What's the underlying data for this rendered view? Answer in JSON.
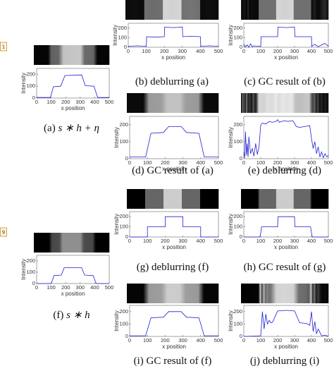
{
  "markers": [
    "1",
    "9"
  ],
  "axes": {
    "xlabel": "x position",
    "ylabel": "Intensity",
    "xlim": [
      0,
      500
    ],
    "ylim": [
      0,
      250
    ],
    "xticks": [
      0,
      100,
      200,
      300,
      400,
      500
    ],
    "yticks": [
      0,
      100,
      200
    ],
    "color": "#1f1fd6"
  },
  "panels": [
    {
      "label": "(a)",
      "math": "s ∗ h + η",
      "x": [
        0,
        95,
        115,
        165,
        195,
        310,
        335,
        395,
        420,
        500
      ],
      "y": [
        5,
        5,
        95,
        100,
        190,
        195,
        105,
        100,
        5,
        5
      ]
    },
    {
      "label": "(b)",
      "text": "deblurring (a)",
      "x": [
        0,
        50,
        100,
        102,
        150,
        200,
        202,
        250,
        300,
        302,
        350,
        400,
        402,
        450,
        500
      ],
      "y": [
        10,
        15,
        10,
        110,
        105,
        110,
        210,
        205,
        210,
        110,
        115,
        110,
        10,
        15,
        10
      ]
    },
    {
      "label": "(c)",
      "text": "GC result of (b)",
      "x": [
        0,
        10,
        20,
        30,
        40,
        50,
        60,
        80,
        100,
        102,
        150,
        200,
        202,
        250,
        300,
        302,
        350,
        400,
        402,
        420,
        440,
        460,
        480,
        500
      ],
      "y": [
        30,
        5,
        25,
        0,
        35,
        5,
        15,
        10,
        10,
        110,
        110,
        110,
        210,
        205,
        210,
        110,
        110,
        110,
        10,
        30,
        5,
        25,
        40,
        10
      ]
    },
    {
      "label": "(d)",
      "text": "GC result of (a)",
      "x": [
        0,
        90,
        120,
        190,
        220,
        290,
        320,
        390,
        420,
        500
      ],
      "y": [
        10,
        10,
        150,
        155,
        190,
        190,
        155,
        150,
        10,
        10
      ]
    },
    {
      "label": "(e)",
      "text": "deblurring (d)",
      "x": [
        0,
        5,
        10,
        15,
        20,
        25,
        30,
        40,
        50,
        60,
        70,
        80,
        90,
        100,
        110,
        130,
        150,
        170,
        190,
        200,
        210,
        240,
        260,
        290,
        300,
        310,
        330,
        360,
        390,
        400,
        410,
        420,
        430,
        440,
        450,
        460,
        470,
        480,
        490,
        500
      ],
      "y": [
        40,
        5,
        160,
        20,
        90,
        10,
        130,
        30,
        60,
        15,
        90,
        25,
        70,
        200,
        210,
        205,
        220,
        215,
        220,
        230,
        215,
        225,
        220,
        225,
        210,
        190,
        185,
        190,
        195,
        120,
        60,
        100,
        30,
        70,
        10,
        40,
        5,
        30,
        10,
        20
      ]
    },
    {
      "label": "(f)",
      "math": "s ∗ h",
      "x": [
        0,
        100,
        120,
        170,
        190,
        310,
        330,
        390,
        410,
        500
      ],
      "y": [
        0,
        0,
        70,
        75,
        140,
        140,
        75,
        70,
        0,
        0
      ]
    },
    {
      "label": "(g)",
      "text": "deblurring (f)",
      "x": [
        0,
        100,
        100,
        200,
        200,
        300,
        300,
        400,
        400,
        500
      ],
      "y": [
        0,
        0,
        100,
        100,
        200,
        200,
        100,
        100,
        0,
        0
      ]
    },
    {
      "label": "(h)",
      "text": "GC result of (g)",
      "x": [
        0,
        95,
        100,
        105,
        200,
        202,
        300,
        302,
        395,
        400,
        405,
        500
      ],
      "y": [
        0,
        0,
        40,
        100,
        100,
        200,
        200,
        100,
        100,
        40,
        0,
        0
      ]
    },
    {
      "label": "(i)",
      "text": "GC result of (f)",
      "x": [
        0,
        90,
        120,
        190,
        220,
        290,
        320,
        390,
        420,
        500
      ],
      "y": [
        5,
        5,
        150,
        155,
        200,
        200,
        155,
        150,
        5,
        5
      ]
    },
    {
      "label": "(j)",
      "text": "deblurring (i)",
      "x": [
        0,
        100,
        110,
        120,
        130,
        140,
        150,
        160,
        170,
        200,
        250,
        300,
        330,
        370,
        390,
        400,
        410,
        420,
        430,
        440,
        460,
        480,
        500
      ],
      "y": [
        0,
        5,
        200,
        60,
        180,
        100,
        130,
        110,
        115,
        205,
        210,
        205,
        110,
        105,
        90,
        200,
        40,
        120,
        20,
        60,
        5,
        10,
        0
      ]
    }
  ]
}
